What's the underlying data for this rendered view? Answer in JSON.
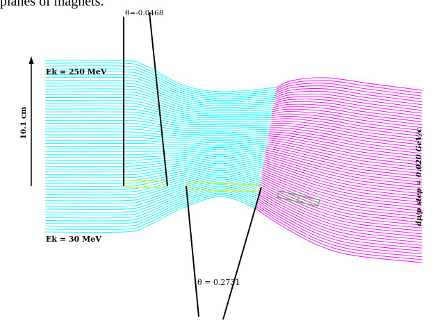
{
  "caption": "planes of magnets.",
  "labels": {
    "theta_top": "θ=-0.0468",
    "theta_bottom": "θ = 0.2731",
    "ek_high": "Ek = 250 MeV",
    "ek_low": "Ek = 30 MeV",
    "scale": "10.1 cm",
    "momentum_step": "dp/p step = 0.020 GeV/c"
  },
  "colors": {
    "background": "#ffffff",
    "trajectory_upstream": "#00ffff",
    "trajectory_downstream": "#ff00ff",
    "magnet_1": "#ffff00",
    "magnet_2": "#ffff00",
    "magnet_3": "#00cc00",
    "lines": "#000000"
  },
  "trajectories": {
    "count": 61
  }
}
